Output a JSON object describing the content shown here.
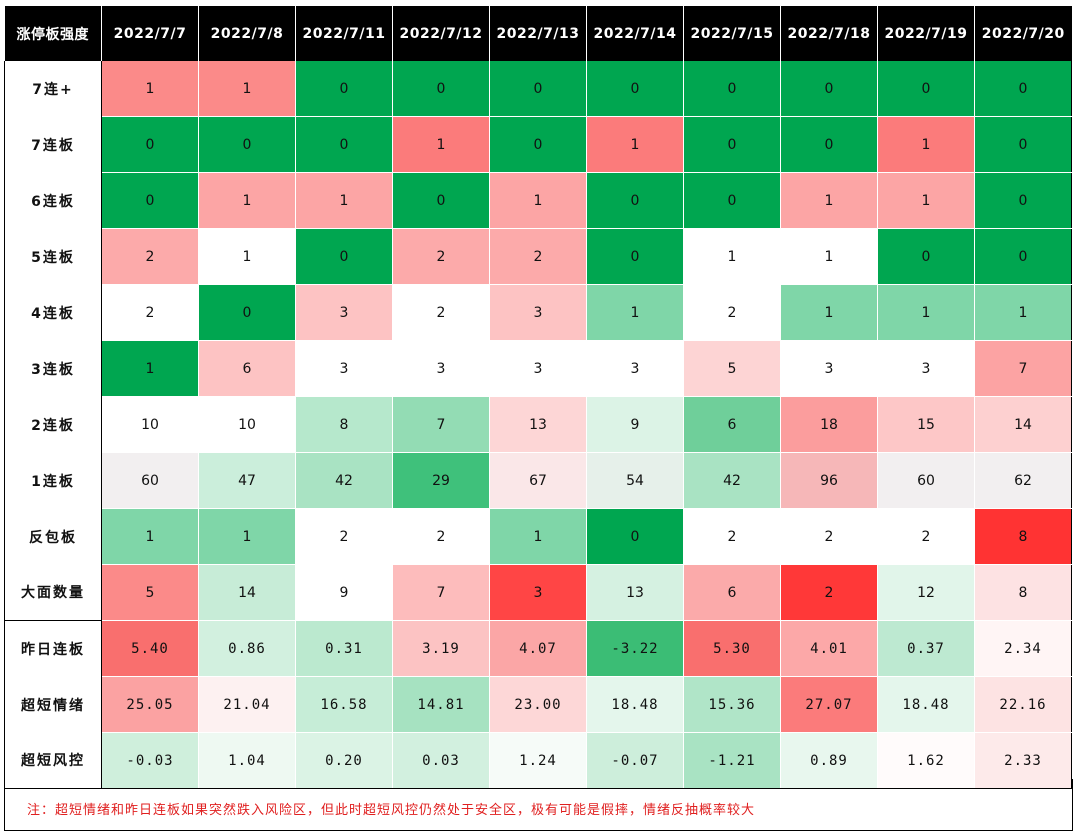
{
  "chart_data": {
    "type": "heatmap",
    "corner_label": "涨停板强度",
    "columns": [
      "2022/7/7",
      "2022/7/8",
      "2022/7/11",
      "2022/7/12",
      "2022/7/13",
      "2022/7/14",
      "2022/7/15",
      "2022/7/18",
      "2022/7/19",
      "2022/7/20"
    ],
    "rows": [
      {
        "label": "7连+",
        "group": 1,
        "values": [
          "1",
          "1",
          "0",
          "0",
          "0",
          "0",
          "0",
          "0",
          "0",
          "0"
        ],
        "colors": [
          "#fb8a89",
          "#fb8a89",
          "#00a650",
          "#00a650",
          "#00a650",
          "#00a650",
          "#00a650",
          "#00a650",
          "#00a650",
          "#00a650"
        ]
      },
      {
        "label": "7连板",
        "group": 1,
        "values": [
          "0",
          "0",
          "0",
          "1",
          "0",
          "1",
          "0",
          "0",
          "1",
          "0"
        ],
        "colors": [
          "#00a650",
          "#00a650",
          "#00a650",
          "#fb7b7b",
          "#00a650",
          "#fb7b7b",
          "#00a650",
          "#00a650",
          "#fb7b7b",
          "#00a650"
        ]
      },
      {
        "label": "6连板",
        "group": 1,
        "values": [
          "0",
          "1",
          "1",
          "0",
          "1",
          "0",
          "0",
          "1",
          "1",
          "0"
        ],
        "colors": [
          "#00a650",
          "#fca5a5",
          "#fca5a5",
          "#00a650",
          "#fca5a5",
          "#00a650",
          "#00a650",
          "#fca5a5",
          "#fca5a5",
          "#00a650"
        ]
      },
      {
        "label": "5连板",
        "group": 1,
        "values": [
          "2",
          "1",
          "0",
          "2",
          "2",
          "0",
          "1",
          "1",
          "0",
          "0"
        ],
        "colors": [
          "#fcaaaa",
          "#ffffff",
          "#00a650",
          "#fcaaaa",
          "#fcaaaa",
          "#00a650",
          "#ffffff",
          "#ffffff",
          "#00a650",
          "#00a650"
        ]
      },
      {
        "label": "4连板",
        "group": 1,
        "values": [
          "2",
          "0",
          "3",
          "2",
          "3",
          "1",
          "2",
          "1",
          "1",
          "1"
        ],
        "colors": [
          "#ffffff",
          "#00a650",
          "#fdc3c3",
          "#ffffff",
          "#fdc3c3",
          "#7fd6a8",
          "#ffffff",
          "#7fd6a8",
          "#7fd6a8",
          "#7fd6a8"
        ]
      },
      {
        "label": "3连板",
        "group": 1,
        "values": [
          "1",
          "6",
          "3",
          "3",
          "3",
          "3",
          "5",
          "3",
          "3",
          "7"
        ],
        "colors": [
          "#00a650",
          "#fdc3c3",
          "#ffffff",
          "#ffffff",
          "#ffffff",
          "#ffffff",
          "#fdd4d4",
          "#ffffff",
          "#ffffff",
          "#fca3a3"
        ]
      },
      {
        "label": "2连板",
        "group": 1,
        "values": [
          "10",
          "10",
          "8",
          "7",
          "13",
          "9",
          "6",
          "18",
          "15",
          "14"
        ],
        "colors": [
          "#ffffff",
          "#ffffff",
          "#b6e8cc",
          "#93dcb4",
          "#fdd6d6",
          "#dcf3e6",
          "#6fcf9a",
          "#fb9d9d",
          "#fdc7c7",
          "#fdd0d0"
        ]
      },
      {
        "label": "1连板",
        "group": 1,
        "values": [
          "60",
          "47",
          "42",
          "29",
          "67",
          "54",
          "42",
          "96",
          "60",
          "62"
        ],
        "colors": [
          "#f2eff0",
          "#cbeedb",
          "#a9e3c3",
          "#3fc17b",
          "#fae7e8",
          "#e6f0ea",
          "#a9e3c3",
          "#f6b7b8",
          "#f2eff0",
          "#f2eff0"
        ]
      },
      {
        "label": "反包板",
        "group": 1,
        "values": [
          "1",
          "1",
          "2",
          "2",
          "1",
          "0",
          "2",
          "2",
          "2",
          "8"
        ],
        "colors": [
          "#7fd6a8",
          "#7fd6a8",
          "#ffffff",
          "#ffffff",
          "#7fd6a8",
          "#00a650",
          "#ffffff",
          "#ffffff",
          "#ffffff",
          "#ff3333"
        ]
      },
      {
        "label": "大面数量",
        "group": 1,
        "values": [
          "5",
          "14",
          "9",
          "7",
          "3",
          "13",
          "6",
          "2",
          "12",
          "8"
        ],
        "colors": [
          "#fb8a89",
          "#c7ecd7",
          "#ffffff",
          "#fdbcbc",
          "#ff4545",
          "#d5f1e1",
          "#fbaaaa",
          "#ff3838",
          "#e1f5ea",
          "#fde2e3"
        ]
      },
      {
        "label": "昨日连板",
        "group": 2,
        "values": [
          "5.40",
          "0.86",
          "0.31",
          "3.19",
          "4.07",
          "-3.22",
          "5.30",
          "4.01",
          "0.37",
          "2.34"
        ],
        "colors": [
          "#f96f6e",
          "#d2f0df",
          "#bbe9cf",
          "#fcc3c3",
          "#fba6a6",
          "#3bbd75",
          "#f96f6e",
          "#fca8a8",
          "#bde9d1",
          "#fff5f5"
        ]
      },
      {
        "label": "超短情绪",
        "group": 2,
        "values": [
          "25.05",
          "21.04",
          "16.58",
          "14.81",
          "23.00",
          "18.48",
          "15.36",
          "27.07",
          "18.48",
          "22.16"
        ],
        "colors": [
          "#fba2a2",
          "#fdf1f1",
          "#c6edd7",
          "#a6e2c1",
          "#fdd7d7",
          "#e4f6ec",
          "#b0e5c8",
          "#fb7b7b",
          "#e4f6ec",
          "#fde3e3"
        ]
      },
      {
        "label": "超短风控",
        "group": 2,
        "values": [
          "-0.03",
          "1.04",
          "0.20",
          "0.03",
          "1.24",
          "-0.07",
          "-1.21",
          "0.89",
          "1.62",
          "2.33"
        ],
        "colors": [
          "#cfefdc",
          "#eef9f2",
          "#dbf3e5",
          "#d2f0df",
          "#f6fbf8",
          "#cdeedb",
          "#a9e3c3",
          "#e8f7ee",
          "#fffbfb",
          "#fdeaea"
        ]
      }
    ],
    "note": "注：超短情绪和昨日连板如果突然跌入风险区，但此时超短风控仍然处于安全区，极有可能是假摔，情绪反抽概率较大"
  }
}
